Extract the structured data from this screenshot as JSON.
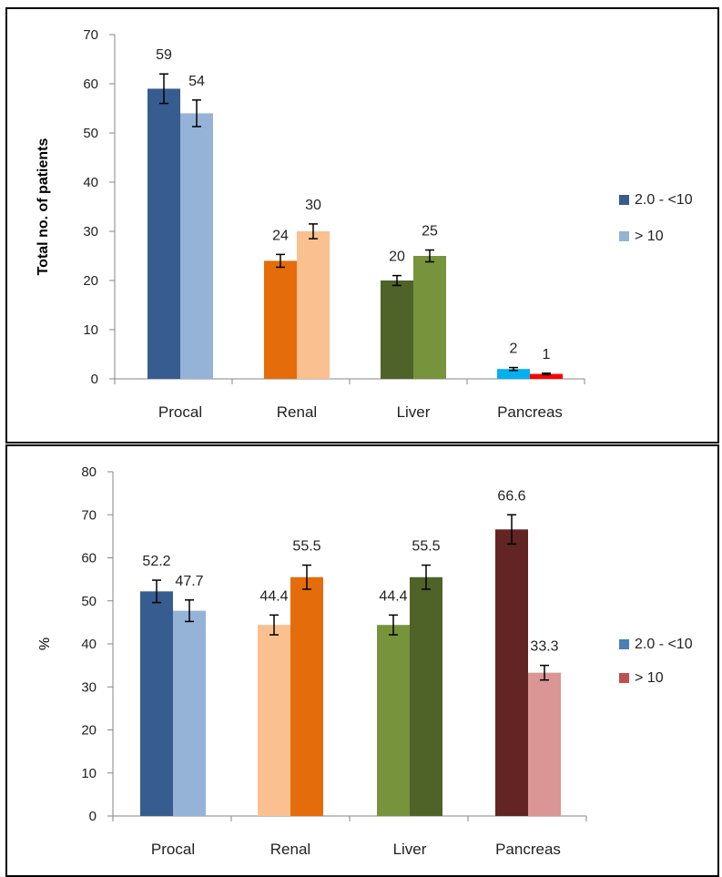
{
  "chart_data": [
    {
      "type": "bar",
      "ylabel": "Total no. of patients",
      "ylim": [
        0,
        70
      ],
      "yticks": [
        0,
        10,
        20,
        30,
        40,
        50,
        60,
        70
      ],
      "categories": [
        "Procal",
        "Renal",
        "Liver",
        "Pancreas"
      ],
      "series": [
        {
          "name": "2.0 - <10",
          "values": [
            59,
            24,
            20,
            2
          ],
          "errors": [
            3,
            1.3,
            1,
            0.3
          ],
          "labels": [
            "59",
            "24",
            "20",
            "2"
          ]
        },
        {
          "name": "> 10",
          "values": [
            54,
            30,
            25,
            1
          ],
          "errors": [
            2.7,
            1.5,
            1.2,
            0.15
          ],
          "labels": [
            "54",
            "30",
            "25",
            "1"
          ]
        }
      ],
      "bar_colors": [
        [
          "#375C8F",
          "#95B3D7"
        ],
        [
          "#E46C0A",
          "#FAC090"
        ],
        [
          "#4F6228",
          "#77933C"
        ],
        [
          "#00B0F0",
          "#FF0000"
        ]
      ],
      "legend_colors": [
        "#375C8F",
        "#95B3D7"
      ],
      "legend_position": "right",
      "grid": false
    },
    {
      "type": "bar",
      "ylabel": "%",
      "ylim": [
        0,
        80
      ],
      "yticks": [
        0,
        10,
        20,
        30,
        40,
        50,
        60,
        70,
        80
      ],
      "categories": [
        "Procal",
        "Renal",
        "Liver",
        "Pancreas"
      ],
      "series": [
        {
          "name": "2.0 - <10",
          "values": [
            52.2,
            44.4,
            44.4,
            66.6
          ],
          "errors": [
            2.6,
            2.3,
            2.3,
            3.4
          ],
          "labels": [
            "52.2",
            "44.4",
            "44.4",
            "66.6"
          ]
        },
        {
          "name": "> 10",
          "values": [
            47.7,
            55.5,
            55.5,
            33.3
          ],
          "errors": [
            2.5,
            2.8,
            2.8,
            1.7
          ],
          "labels": [
            "47.7",
            "55.5",
            "55.5",
            "33.3"
          ]
        }
      ],
      "bar_colors": [
        [
          "#375C8F",
          "#95B3D7"
        ],
        [
          "#FAC090",
          "#E46C0A"
        ],
        [
          "#77933C",
          "#4F6228"
        ],
        [
          "#632523",
          "#D99694"
        ]
      ],
      "legend_colors": [
        "#4A7EBB",
        "#C0504D"
      ],
      "legend_position": "right",
      "grid": false
    }
  ]
}
